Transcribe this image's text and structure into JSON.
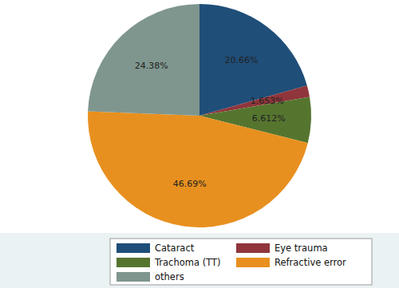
{
  "chart_data": {
    "type": "pie",
    "categories": [
      "Cataract",
      "Eye trauma",
      "Trachoma (TT)",
      "Refractive error",
      "others"
    ],
    "values": [
      20.66,
      1.653,
      6.612,
      46.69,
      24.38
    ],
    "value_labels": [
      "20.66%",
      "1.653%",
      "6.612%",
      "46.69%",
      "24.38%"
    ],
    "colors": [
      "#1f4e79",
      "#90353b",
      "#55752f",
      "#e8901f",
      "#7f968e"
    ],
    "data_labels": true,
    "legend": "bottom"
  }
}
